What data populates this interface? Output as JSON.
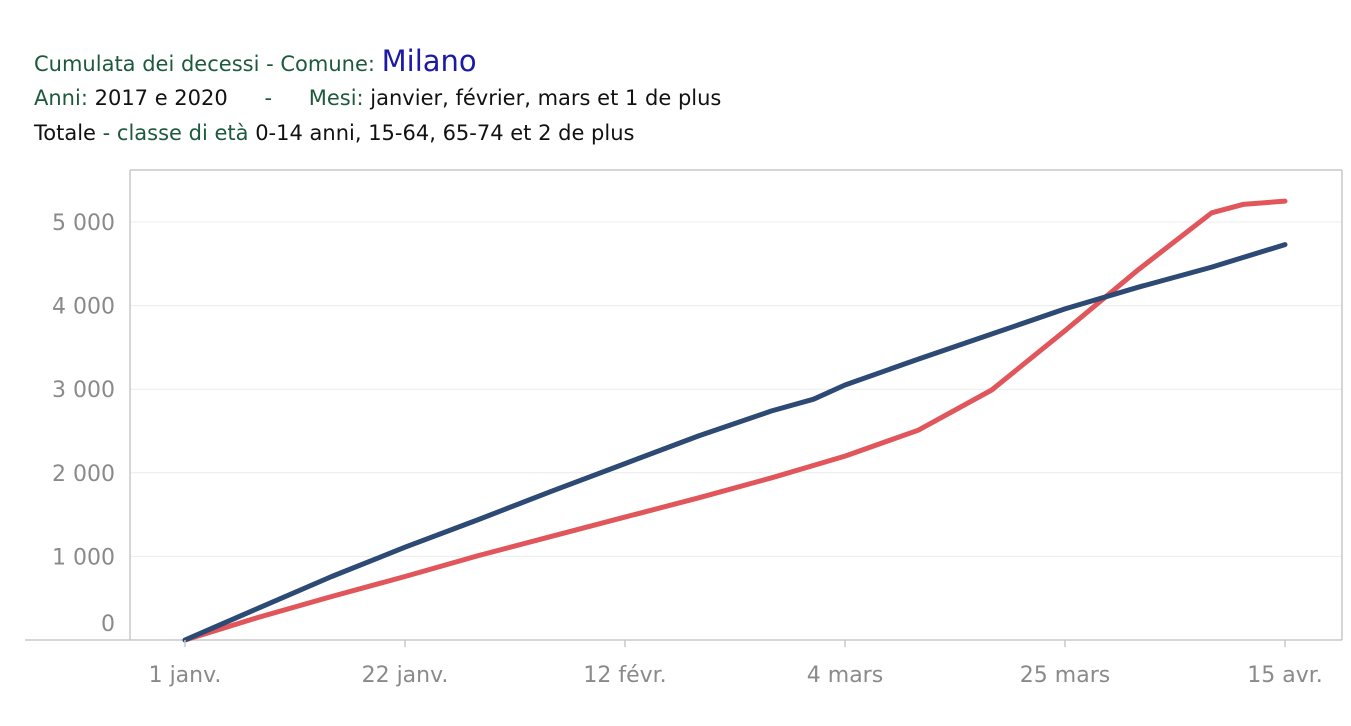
{
  "header": {
    "line1_label": "Cumulata dei decessi -",
    "comune_label": "Comune:",
    "comune_value": "Milano",
    "anni_label": "Anni:",
    "anni_value": "2017 e 2020",
    "sep": "-",
    "mesi_label": "Mesi:",
    "mesi_value": "janvier, février, mars et 1 de plus",
    "totale_label": "Totale",
    "classe_label": "- classe di età",
    "classe_value": "0-14 anni, 15-64, 65-74 et 2 de plus"
  },
  "colors": {
    "series_blue": "#2d4a74",
    "series_red": "#e0565b",
    "grid": "#ececec",
    "axis": "#c8c8c8"
  },
  "chart_data": {
    "type": "line",
    "title": "",
    "xlabel": "",
    "ylabel": "",
    "x_ticks": [
      "1 janv.",
      "22 janv.",
      "12 févr.",
      "4 mars",
      "25 mars",
      "15 avr."
    ],
    "y_ticks": [
      "0",
      "1 000",
      "2 000",
      "3 000",
      "4 000",
      "5 000"
    ],
    "ylim": [
      -150,
      5600
    ],
    "grid": true,
    "series": [
      {
        "color": "#2d4a74",
        "x": [
          "1 janv.",
          "8 janv.",
          "15 janv.",
          "22 janv.",
          "29 janv.",
          "5 févr.",
          "12 févr.",
          "19 févr.",
          "26 févr.",
          "1 mars",
          "4 mars",
          "11 mars",
          "18 mars",
          "25 mars",
          "1 avr.",
          "8 avr.",
          "15 avr."
        ],
        "values": [
          0,
          380,
          760,
          1110,
          1440,
          1780,
          2110,
          2440,
          2740,
          2880,
          3050,
          3360,
          3660,
          3960,
          4220,
          4460,
          4730
        ]
      },
      {
        "color": "#e0565b",
        "x": [
          "1 janv.",
          "8 janv.",
          "15 janv.",
          "22 janv.",
          "29 janv.",
          "5 févr.",
          "12 févr.",
          "19 févr.",
          "26 févr.",
          "4 mars",
          "11 mars",
          "18 mars",
          "25 mars",
          "1 avr.",
          "8 avr.",
          "11 avr.",
          "15 avr."
        ],
        "values": [
          0,
          270,
          520,
          760,
          1010,
          1240,
          1470,
          1700,
          1940,
          2200,
          2510,
          2990,
          3700,
          4430,
          5110,
          5210,
          5250
        ]
      }
    ]
  }
}
